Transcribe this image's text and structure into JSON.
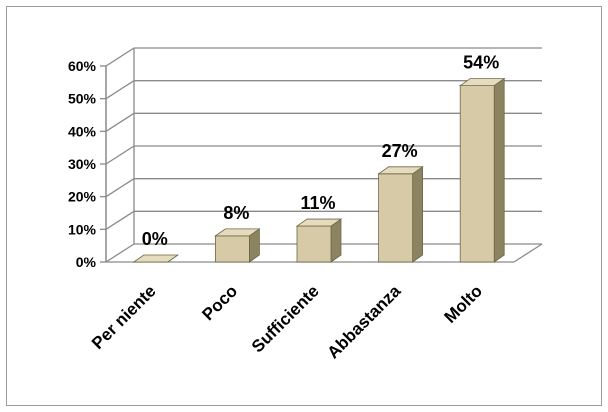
{
  "chart_data": {
    "type": "bar",
    "categories": [
      "Per niente",
      "Poco",
      "Sufficiente",
      "Abbastanza",
      "Molto"
    ],
    "values": [
      0,
      8,
      11,
      27,
      54
    ],
    "data_labels": [
      "0%",
      "8%",
      "11%",
      "27%",
      "54%"
    ],
    "y_ticks": [
      "0%",
      "10%",
      "20%",
      "30%",
      "40%",
      "50%",
      "60%"
    ],
    "ylim": [
      0,
      60
    ],
    "grid": true,
    "legend": "none",
    "colors": {
      "bar_front": "#d6cba6",
      "bar_side": "#8c8360",
      "bar_top": "#e4dcbd",
      "bar_edge": "#6e6648",
      "gridline": "#8a8a8a"
    }
  }
}
